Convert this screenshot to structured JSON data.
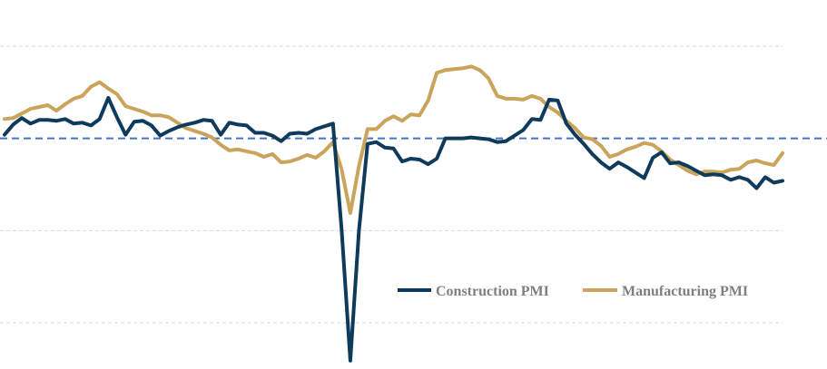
{
  "chart_data": {
    "type": "line",
    "title": "",
    "xlabel": "",
    "ylabel": "",
    "ylim": [
      25,
      65
    ],
    "grid": "horizontal dashed",
    "legend_position": "bottom-right",
    "reference_line": {
      "value": 50,
      "style": "dashed",
      "color": "#4472c4"
    },
    "x": [
      1,
      2,
      3,
      4,
      5,
      6,
      7,
      8,
      9,
      10,
      11,
      12,
      13,
      14,
      15,
      16,
      17,
      18,
      19,
      20,
      21,
      22,
      23,
      24,
      25,
      26,
      27,
      28,
      29,
      30,
      31,
      32,
      33,
      34,
      35,
      36,
      37,
      38,
      39,
      40,
      41,
      42,
      43,
      44,
      45,
      46,
      47,
      48,
      49,
      50,
      51,
      52,
      53,
      54,
      55,
      56,
      57,
      58,
      59,
      60,
      61,
      62,
      63,
      64,
      65,
      66,
      67,
      68,
      69,
      70,
      71,
      72,
      73,
      74,
      75,
      76,
      77,
      78,
      79,
      80,
      81,
      82,
      83,
      84,
      85,
      86,
      87,
      88,
      89,
      90,
      91
    ],
    "series": [
      {
        "name": "Construction PMI",
        "color": "#0e3a5c",
        "values": [
          50.4,
          51.5,
          52.2,
          51.6,
          52.0,
          52.0,
          51.9,
          52.1,
          51.6,
          51.7,
          51.4,
          52.1,
          54.4,
          52.3,
          50.4,
          51.8,
          51.9,
          51.4,
          50.3,
          50.8,
          51.2,
          51.5,
          51.7,
          52.0,
          51.9,
          50.4,
          51.7,
          51.5,
          51.4,
          50.6,
          50.6,
          50.3,
          49.7,
          50.5,
          50.6,
          50.5,
          51.0,
          51.3,
          51.6,
          40.0,
          25.9,
          40.0,
          49.4,
          49.6,
          49.0,
          48.9,
          47.5,
          47.8,
          47.7,
          47.2,
          47.8,
          50.0,
          50.0,
          50.0,
          50.1,
          50.0,
          49.9,
          49.6,
          49.7,
          50.3,
          50.9,
          52.1,
          52.0,
          54.2,
          54.1,
          51.6,
          50.4,
          49.4,
          48.3,
          47.4,
          46.7,
          47.4,
          46.9,
          46.3,
          45.7,
          47.9,
          48.5,
          47.3,
          47.4,
          47.0,
          46.5,
          46.0,
          46.1,
          46.0,
          45.5,
          45.8,
          45.5,
          44.6,
          45.8,
          45.2,
          45.4
        ]
      },
      {
        "name": "Manufacturing PMI",
        "color": "#c9a45a",
        "values": [
          52.1,
          52.2,
          52.7,
          53.2,
          53.4,
          53.6,
          53.0,
          53.7,
          54.3,
          54.6,
          55.6,
          56.1,
          55.4,
          54.8,
          53.5,
          53.2,
          52.9,
          52.5,
          52.5,
          52.3,
          51.7,
          51.1,
          50.8,
          50.5,
          50.1,
          49.3,
          48.7,
          48.8,
          48.6,
          48.4,
          48.0,
          48.3,
          47.4,
          47.5,
          47.8,
          48.2,
          47.9,
          48.6,
          49.6,
          46.6,
          41.9,
          47.0,
          51.0,
          51.0,
          51.9,
          52.4,
          51.9,
          52.6,
          52.5,
          54.1,
          57.1,
          57.4,
          57.5,
          57.6,
          57.8,
          57.4,
          56.5,
          54.6,
          54.3,
          54.3,
          54.2,
          54.6,
          54.3,
          53.4,
          52.8,
          51.9,
          51.1,
          50.1,
          49.9,
          49.2,
          48.0,
          48.3,
          48.8,
          49.1,
          49.5,
          49.3,
          48.6,
          47.7,
          47.1,
          46.5,
          46.1,
          46.4,
          46.4,
          46.3,
          46.6,
          46.7,
          47.4,
          47.6,
          47.3,
          47.1,
          48.4
        ]
      }
    ]
  }
}
